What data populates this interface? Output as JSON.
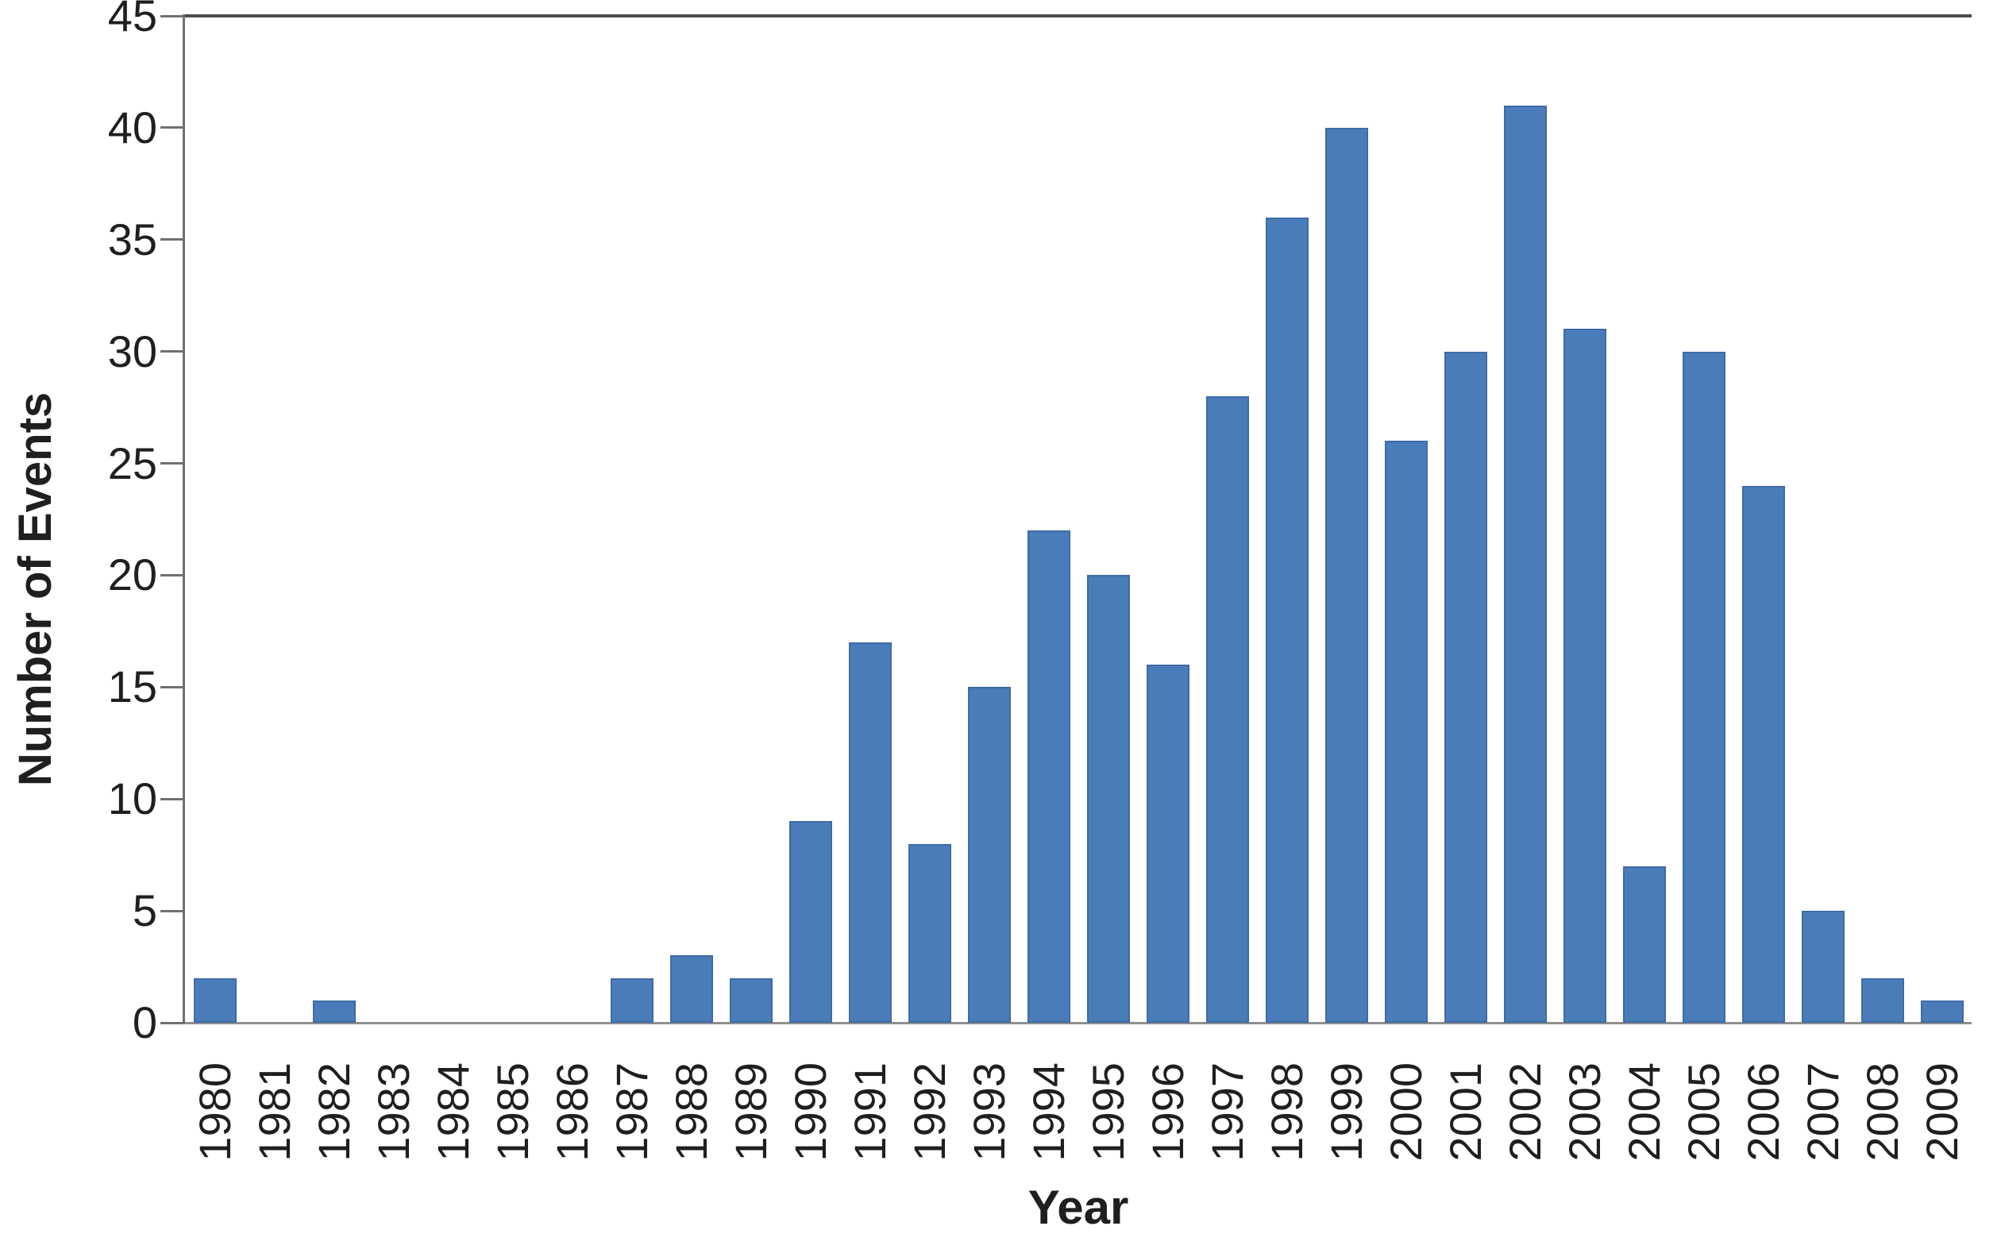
{
  "chart_data": {
    "type": "bar",
    "title": "",
    "xlabel": "Year",
    "ylabel": "Number of Events",
    "categories": [
      "1980",
      "1981",
      "1982",
      "1983",
      "1984",
      "1985",
      "1986",
      "1987",
      "1988",
      "1989",
      "1990",
      "1991",
      "1992",
      "1993",
      "1994",
      "1995",
      "1996",
      "1997",
      "1998",
      "1999",
      "2000",
      "2001",
      "2002",
      "2003",
      "2004",
      "2005",
      "2006",
      "2007",
      "2008",
      "2009"
    ],
    "values": [
      2,
      0,
      1,
      0,
      0,
      0,
      0,
      2,
      3,
      2,
      9,
      17,
      8,
      15,
      22,
      20,
      16,
      28,
      36,
      40,
      26,
      30,
      41,
      31,
      7,
      30,
      24,
      5,
      2,
      1
    ],
    "ylim": [
      0,
      45
    ],
    "yticks": [
      0,
      5,
      10,
      15,
      20,
      25,
      30,
      35,
      40,
      45
    ],
    "grid": "off",
    "legend": "none",
    "colors": {
      "bar_fill": "#4B7CBA",
      "bar_border": "#3E6BA6",
      "axis_left": "#707070",
      "axis_bottom": "#8F8F8F",
      "plot_top_border": "#4D4D4D",
      "tick": "#707070",
      "text": "#1F1F1F"
    }
  }
}
